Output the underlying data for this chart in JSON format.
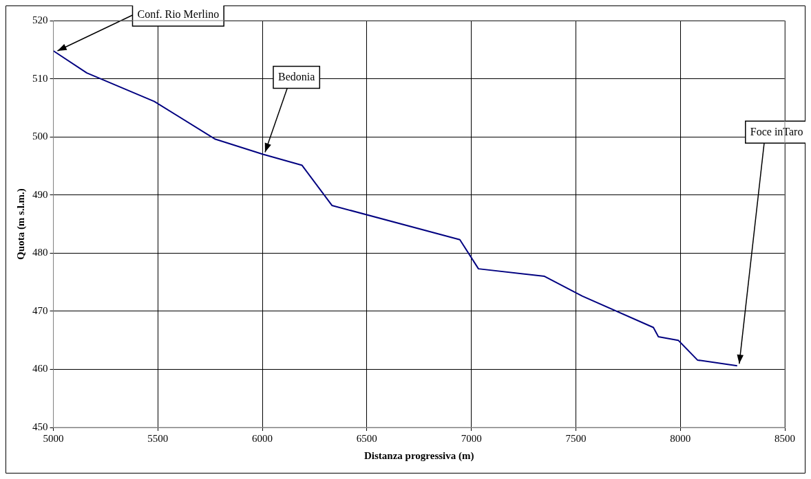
{
  "chart_data": {
    "type": "line",
    "xlabel": "Distanza progressiva (m)",
    "ylabel": "Quota (m s.l.m.)",
    "x": [
      5000,
      5160,
      5483,
      5775,
      6003,
      6190,
      6333,
      6945,
      7034,
      7350,
      7531,
      7871,
      7895,
      7990,
      8082,
      8272
    ],
    "series": [
      {
        "color": "#000080",
        "values": [
          514.8,
          511.0,
          506.1,
          499.6,
          497.0,
          495.1,
          488.2,
          482.3,
          477.3,
          476.0,
          472.6,
          467.2,
          465.6,
          465.0,
          461.6,
          460.6
        ]
      }
    ],
    "xlim": [
      5000,
      8500
    ],
    "xticks": [
      5000,
      5500,
      6000,
      6500,
      7000,
      7500,
      8000,
      8500
    ],
    "ylim": [
      450,
      520
    ],
    "yticks": [
      450,
      460,
      470,
      480,
      490,
      500,
      510,
      520
    ],
    "grid": true,
    "legend": false,
    "marker": "none",
    "line_style": "solid",
    "annotations": [
      {
        "text": "Conf. Rio Merlino",
        "x": 5000,
        "y": 514.8
      },
      {
        "text": "Bedonia",
        "x": 6003,
        "y": 497.0
      },
      {
        "text": "Foce inTaro",
        "x": 8272,
        "y": 460.6
      }
    ]
  }
}
